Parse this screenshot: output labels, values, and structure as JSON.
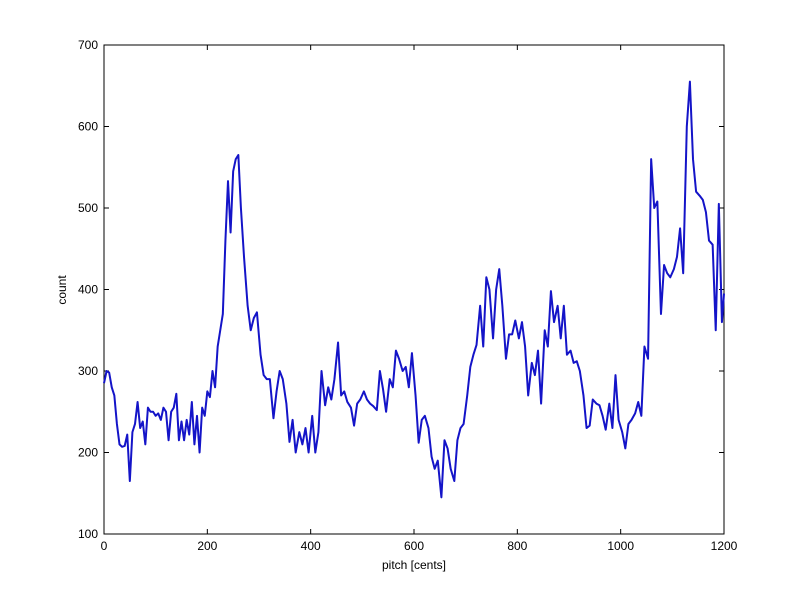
{
  "chart_data": {
    "type": "line",
    "xlabel": "pitch [cents]",
    "ylabel": "count",
    "xlim": [
      0,
      1200
    ],
    "ylim": [
      100,
      700
    ],
    "xticks": [
      0,
      200,
      400,
      600,
      800,
      1000,
      1200
    ],
    "yticks": [
      100,
      200,
      300,
      400,
      500,
      600,
      700
    ],
    "x": [
      0,
      5,
      10,
      15,
      20,
      25,
      30,
      35,
      40,
      45,
      50,
      55,
      60,
      65,
      70,
      75,
      80,
      85,
      90,
      95,
      100,
      105,
      110,
      115,
      120,
      125,
      130,
      135,
      140,
      145,
      150,
      155,
      160,
      165,
      170,
      175,
      180,
      185,
      190,
      195,
      200,
      205,
      210,
      215,
      220,
      225,
      230,
      235,
      240,
      245,
      250,
      255,
      260,
      265,
      271,
      278,
      284,
      290,
      296,
      303,
      309,
      315,
      321,
      328,
      334,
      340,
      346,
      353,
      359,
      365,
      371,
      378,
      384,
      390,
      396,
      403,
      409,
      415,
      421,
      428,
      434,
      440,
      446,
      453,
      459,
      465,
      471,
      478,
      484,
      490,
      496,
      503,
      509,
      515,
      521,
      528,
      534,
      540,
      546,
      553,
      559,
      565,
      571,
      578,
      584,
      590,
      596,
      603,
      609,
      615,
      621,
      628,
      634,
      640,
      646,
      653,
      659,
      665,
      671,
      678,
      684,
      690,
      696,
      703,
      709,
      715,
      721,
      728,
      734,
      740,
      746,
      753,
      759,
      765,
      771,
      778,
      784,
      790,
      796,
      803,
      809,
      815,
      821,
      828,
      834,
      840,
      846,
      853,
      859,
      865,
      871,
      878,
      884,
      890,
      896,
      903,
      909,
      915,
      921,
      928,
      934,
      940,
      946,
      953,
      959,
      965,
      971,
      978,
      984,
      990,
      996,
      1003,
      1009,
      1015,
      1021,
      1028,
      1034,
      1040,
      1046,
      1053,
      1059,
      1065,
      1071,
      1078,
      1084,
      1090,
      1096,
      1103,
      1109,
      1115,
      1121,
      1128,
      1134,
      1140,
      1146,
      1153,
      1159,
      1165,
      1171,
      1178,
      1184,
      1190,
      1196,
      1200
    ],
    "series": [
      {
        "color": "#1414c8",
        "values": [
          285,
          300,
          298,
          280,
          270,
          235,
          210,
          207,
          208,
          222,
          165,
          225,
          235,
          262,
          230,
          238,
          210,
          255,
          250,
          250,
          245,
          248,
          240,
          255,
          250,
          215,
          250,
          255,
          272,
          215,
          238,
          215,
          240,
          222,
          262,
          210,
          245,
          200,
          255,
          245,
          275,
          268,
          300,
          280,
          330,
          350,
          370,
          460,
          533,
          470,
          545,
          560,
          565,
          500,
          440,
          380,
          350,
          365,
          372,
          320,
          295,
          290,
          290,
          242,
          275,
          300,
          290,
          260,
          213,
          240,
          200,
          225,
          210,
          230,
          200,
          245,
          200,
          225,
          300,
          258,
          280,
          265,
          290,
          335,
          270,
          275,
          262,
          255,
          233,
          260,
          265,
          275,
          265,
          260,
          257,
          252,
          300,
          278,
          250,
          290,
          280,
          325,
          315,
          300,
          305,
          280,
          322,
          270,
          212,
          240,
          245,
          230,
          195,
          180,
          190,
          145,
          215,
          205,
          180,
          165,
          215,
          230,
          235,
          270,
          305,
          320,
          332,
          380,
          330,
          415,
          400,
          340,
          400,
          425,
          380,
          315,
          345,
          345,
          362,
          340,
          360,
          330,
          270,
          310,
          295,
          325,
          260,
          350,
          330,
          398,
          360,
          380,
          340,
          380,
          320,
          325,
          310,
          312,
          300,
          270,
          230,
          233,
          265,
          260,
          258,
          245,
          228,
          260,
          230,
          295,
          240,
          225,
          205,
          235,
          240,
          248,
          262,
          245,
          330,
          315,
          560,
          500,
          508,
          370,
          430,
          420,
          415,
          425,
          440,
          475,
          420,
          600,
          655,
          560,
          520,
          515,
          510,
          495,
          460,
          455,
          350,
          505,
          360,
          395
        ]
      }
    ]
  }
}
